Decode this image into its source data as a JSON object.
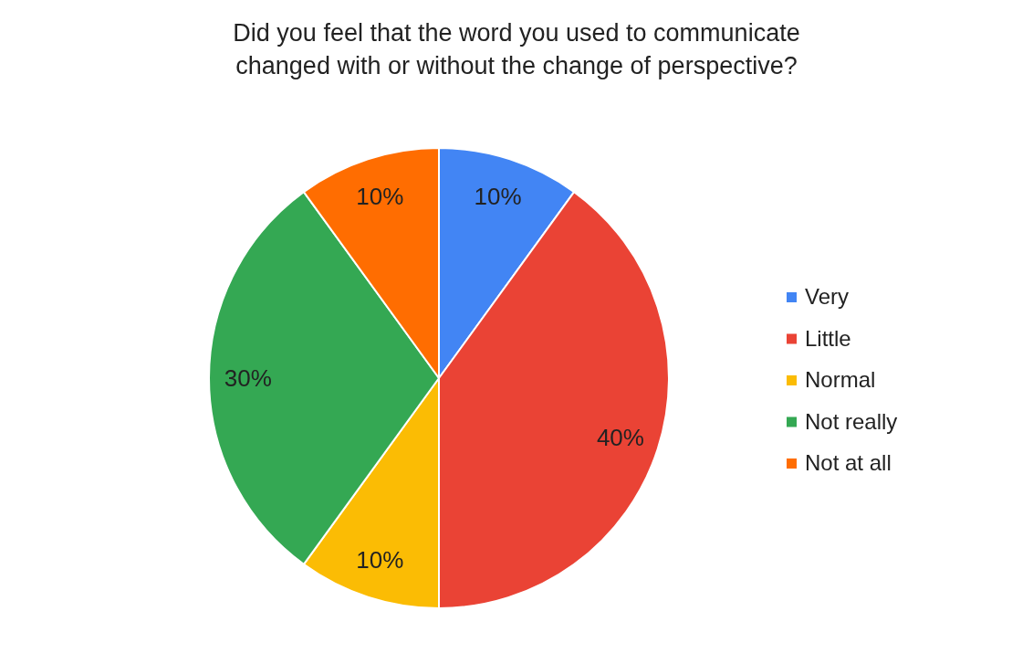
{
  "chart_data": {
    "type": "pie",
    "title": "Did you feel that the word you used to communicate\nchanged with or without the change of perspective?",
    "categories": [
      "Very",
      "Little",
      "Normal",
      "Not really",
      "Not at all"
    ],
    "values": [
      10,
      40,
      10,
      30,
      10
    ],
    "colors": [
      "#4285f4",
      "#ea4335",
      "#fbbc04",
      "#34a853",
      "#ff6d01"
    ],
    "value_labels": [
      "10%",
      "40%",
      "10%",
      "30%",
      "10%"
    ],
    "legend": "right"
  }
}
